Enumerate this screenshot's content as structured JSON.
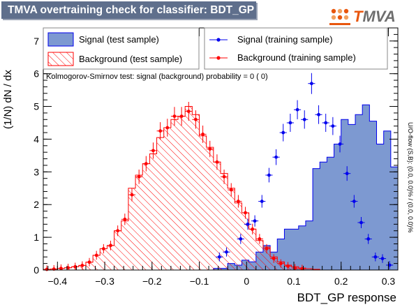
{
  "header": {
    "title": "TMVA overtraining check for classifier: BDT_GP",
    "logo_text_accent": "T",
    "logo_text_rest": "MVA"
  },
  "legend": {
    "signal_test": "Signal (test sample)",
    "background_test": "Background (test sample)",
    "signal_train": "Signal (training sample)",
    "background_train": "Background (training sample)"
  },
  "ks_text": "Kolmogorov-Smirnov test: signal (background) probability =     0 (     0)",
  "side_text": "U/O-flow (S,B): (0.0, 0.0)% / (0.0, 0.0)%",
  "colors": {
    "signal_fill": "#7d99d1",
    "signal_line": "#0000ee",
    "background_hatch": "#ff0000",
    "title_bar": "#5f6f8c",
    "logo_accent": "#e8560d"
  },
  "chart_data": {
    "type": "histogram",
    "xlabel": "BDT_GP response",
    "ylabel": "(1/N) dN / dx",
    "xlim": [
      -0.43,
      0.32
    ],
    "ylim": [
      0,
      7.4
    ],
    "x_ticks": [
      -0.4,
      -0.3,
      -0.2,
      -0.1,
      0,
      0.1,
      0.2,
      0.3
    ],
    "x_tick_labels": [
      "−0.4",
      "−0.3",
      "−0.2",
      "−0.1",
      "0",
      "0.1",
      "0.2",
      "0.3"
    ],
    "y_ticks": [
      0,
      1,
      2,
      3,
      4,
      5,
      6,
      7
    ],
    "bin_low": -0.43,
    "bin_width": 0.015,
    "series": [
      {
        "name": "Signal (test sample)",
        "style": "filled-histogram",
        "values": [
          0,
          0,
          0,
          0,
          0,
          0,
          0,
          0,
          0,
          0,
          0,
          0,
          0,
          0,
          0,
          0,
          0,
          0,
          0,
          0,
          0,
          0,
          0,
          0,
          0.05,
          0.05,
          0.2,
          0.15,
          0.3,
          0.25,
          0.55,
          0.75,
          0.55,
          0.95,
          1.25,
          1.25,
          1.35,
          1.5,
          3.1,
          3.3,
          3.45,
          3.85,
          4.6,
          4.45,
          4.75,
          5.05,
          4.55,
          3.85,
          4.25,
          3.15,
          2.5,
          1.75,
          1.05,
          0.65,
          0.5,
          0.35,
          0,
          0,
          0,
          0
        ]
      },
      {
        "name": "Background (test sample)",
        "style": "hatched-histogram",
        "values": [
          0.02,
          0.03,
          0.05,
          0.07,
          0.1,
          0.14,
          0.24,
          0.45,
          0.65,
          0.75,
          1.2,
          1.5,
          2.5,
          2.9,
          3.25,
          3.55,
          4.05,
          4.35,
          4.6,
          4.7,
          5.0,
          4.75,
          4.1,
          3.75,
          3.3,
          2.95,
          2.5,
          2.05,
          1.75,
          1.25,
          0.9,
          0.7,
          0.4,
          0.25,
          0.15,
          0.1,
          0.06,
          0.04,
          0.02,
          0,
          0,
          0,
          0,
          0,
          0,
          0,
          0,
          0,
          0,
          0,
          0,
          0,
          0,
          0,
          0,
          0,
          0,
          0,
          0,
          0
        ]
      },
      {
        "name": "Signal (training sample)",
        "style": "points-with-errors",
        "points": [
          {
            "x": -0.0575,
            "y": 0.4
          },
          {
            "x": -0.0425,
            "y": 0.55
          },
          {
            "x": -0.0125,
            "y": 0.95
          },
          {
            "x": 0.0025,
            "y": 1.4
          },
          {
            "x": 0.0175,
            "y": 1.5
          },
          {
            "x": 0.0325,
            "y": 2.1
          },
          {
            "x": 0.0475,
            "y": 2.9
          },
          {
            "x": 0.0625,
            "y": 3.45
          },
          {
            "x": 0.0775,
            "y": 4.2
          },
          {
            "x": 0.0925,
            "y": 4.5
          },
          {
            "x": 0.1075,
            "y": 4.9
          },
          {
            "x": 0.1225,
            "y": 4.6
          },
          {
            "x": 0.1375,
            "y": 5.7
          },
          {
            "x": 0.1525,
            "y": 4.75
          },
          {
            "x": 0.1675,
            "y": 4.5
          },
          {
            "x": 0.1825,
            "y": 4.4
          },
          {
            "x": 0.1975,
            "y": 3.85
          },
          {
            "x": 0.2125,
            "y": 2.95
          },
          {
            "x": 0.2275,
            "y": 2.1
          },
          {
            "x": 0.2425,
            "y": 1.45
          },
          {
            "x": 0.2575,
            "y": 0.95
          },
          {
            "x": 0.2725,
            "y": 0.4
          },
          {
            "x": 0.2875,
            "y": 0.35
          },
          {
            "x": 0.3025,
            "y": 0.15
          }
        ]
      },
      {
        "name": "Background (training sample)",
        "style": "points-with-errors",
        "points": [
          {
            "x": -0.4225,
            "y": 0.02
          },
          {
            "x": -0.4075,
            "y": 0.03
          },
          {
            "x": -0.3925,
            "y": 0.05
          },
          {
            "x": -0.3775,
            "y": 0.07
          },
          {
            "x": -0.3625,
            "y": 0.1
          },
          {
            "x": -0.3475,
            "y": 0.14
          },
          {
            "x": -0.3325,
            "y": 0.24
          },
          {
            "x": -0.3175,
            "y": 0.45
          },
          {
            "x": -0.3025,
            "y": 0.65
          },
          {
            "x": -0.2875,
            "y": 0.75
          },
          {
            "x": -0.2725,
            "y": 1.2
          },
          {
            "x": -0.2575,
            "y": 1.55
          },
          {
            "x": -0.2425,
            "y": 2.3
          },
          {
            "x": -0.2275,
            "y": 2.85
          },
          {
            "x": -0.2125,
            "y": 3.25
          },
          {
            "x": -0.1975,
            "y": 3.65
          },
          {
            "x": -0.1825,
            "y": 4.25
          },
          {
            "x": -0.1675,
            "y": 4.35
          },
          {
            "x": -0.1525,
            "y": 4.7
          },
          {
            "x": -0.1375,
            "y": 4.7
          },
          {
            "x": -0.1225,
            "y": 4.85
          },
          {
            "x": -0.1075,
            "y": 4.6
          },
          {
            "x": -0.0925,
            "y": 4.15
          },
          {
            "x": -0.0775,
            "y": 3.7
          },
          {
            "x": -0.0625,
            "y": 3.3
          },
          {
            "x": -0.0475,
            "y": 2.85
          },
          {
            "x": -0.0325,
            "y": 2.45
          },
          {
            "x": -0.0175,
            "y": 2.1
          },
          {
            "x": -0.0025,
            "y": 1.75
          },
          {
            "x": 0.0125,
            "y": 1.25
          },
          {
            "x": 0.0275,
            "y": 0.95
          },
          {
            "x": 0.0425,
            "y": 0.65
          },
          {
            "x": 0.0575,
            "y": 0.35
          },
          {
            "x": 0.0725,
            "y": 0.2
          },
          {
            "x": 0.0875,
            "y": 0.12
          },
          {
            "x": 0.1025,
            "y": 0.06
          },
          {
            "x": 0.1175,
            "y": 0.04
          }
        ]
      }
    ]
  }
}
